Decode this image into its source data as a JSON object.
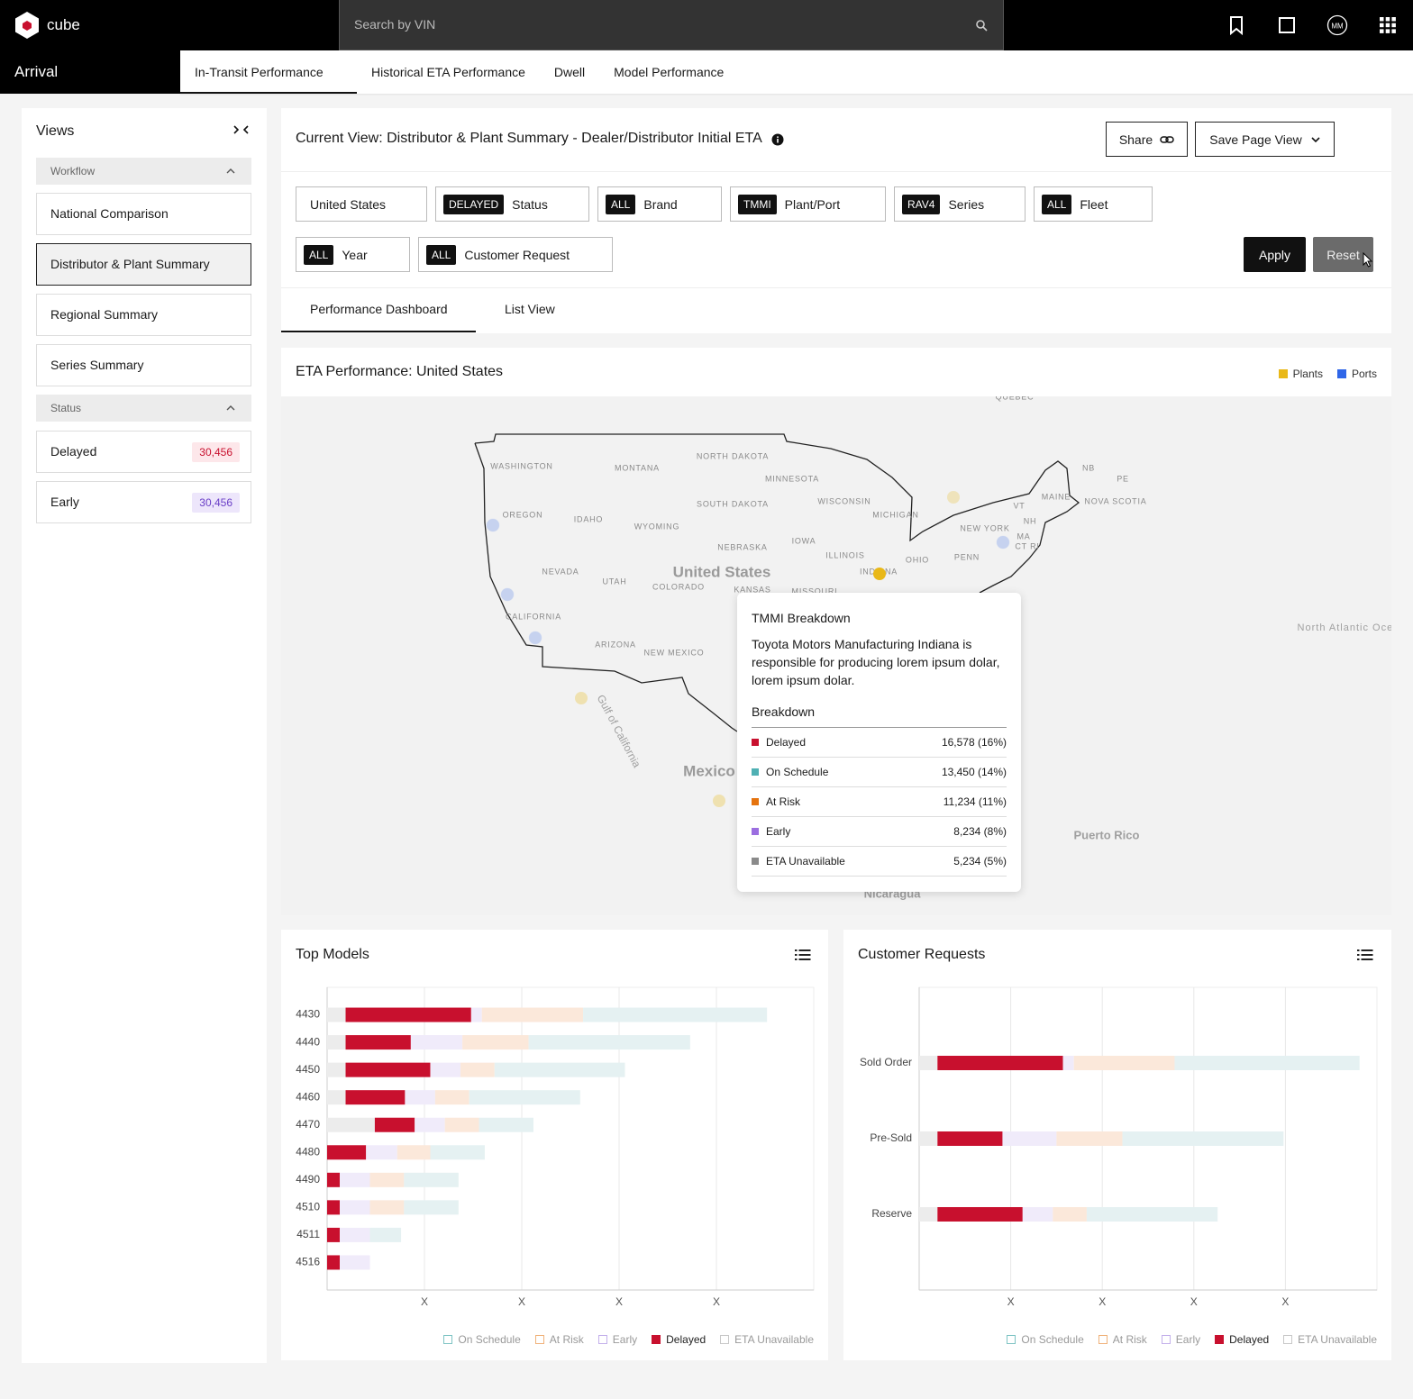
{
  "header": {
    "logo": "cube",
    "search_placeholder": "Search by VIN",
    "user_initials": "MM",
    "app": "Arrival",
    "tabs": [
      "In-Transit Performance",
      "Historical ETA Performance",
      "Dwell",
      "Model Performance"
    ]
  },
  "sidebar": {
    "title": "Views",
    "sections": [
      {
        "title": "Workflow",
        "items": [
          "National Comparison",
          "Distributor & Plant Summary",
          "Regional Summary",
          "Series Summary"
        ]
      },
      {
        "title": "Status",
        "items": [
          {
            "label": "Delayed",
            "count": "30,456"
          },
          {
            "label": "Early",
            "count": "30,456"
          }
        ]
      }
    ]
  },
  "view": {
    "title": "Current View: Distributor & Plant Summary - Dealer/Distributor Initial ETA",
    "share": "Share",
    "save": "Save Page View",
    "filters": [
      {
        "label": "United States"
      },
      {
        "tag": "DELAYED",
        "label": "Status"
      },
      {
        "tag": "ALL",
        "label": "Brand"
      },
      {
        "tag": "TMMI",
        "label": "Plant/Port"
      },
      {
        "tag": "RAV4",
        "label": "Series"
      },
      {
        "tag": "ALL",
        "label": "Fleet"
      },
      {
        "tag": "ALL",
        "label": "Year"
      },
      {
        "tag": "ALL",
        "label": "Customer Request"
      }
    ],
    "apply": "Apply",
    "reset": "Reset",
    "tabs": [
      "Performance Dashboard",
      "List View"
    ]
  },
  "map": {
    "title": "ETA Performance: United States",
    "legend": [
      {
        "name": "Plants",
        "color": "#e9b818"
      },
      {
        "name": "Ports",
        "color": "#2f66e8"
      }
    ],
    "labels": [
      "WASHINGTON",
      "MONTANA",
      "NORTH DAKOTA",
      "MINNESOTA",
      "WISCONSIN",
      "MICHIGAN",
      "SOUTH DAKOTA",
      "OREGON",
      "IDAHO",
      "WYOMING",
      "NEBRASKA",
      "IOWA",
      "ILLINOIS",
      "OHIO",
      "NEW YORK",
      "PENN",
      "NEVADA",
      "UTAH",
      "COLORADO",
      "KANSAS",
      "MISSOURI",
      "INDIANA",
      "CALIFORNIA",
      "ARIZONA",
      "NEW MEXICO",
      "QUEBEC",
      "NB",
      "PE",
      "NOVA SCOTIA",
      "MAINE",
      "VT",
      "NH",
      "MA",
      "CT RI",
      "United States",
      "Mexico",
      "Gulf of California",
      "North Atlantic Ocean",
      "Puerto Rico",
      "Nicaragua"
    ],
    "tooltip": {
      "title": "TMMI Breakdown",
      "description": "Toyota Motors Manufacturing Indiana is responsible for producing lorem ipsum dolar, lorem ipsum dolar.",
      "subtitle": "Breakdown",
      "rows": [
        {
          "name": "Delayed",
          "value": "16,578 (16%)",
          "color": "#c8102e"
        },
        {
          "name": "On Schedule",
          "value": "13,450 (14%)",
          "color": "#4fb0b3"
        },
        {
          "name": "At Risk",
          "value": "11,234 (11%)",
          "color": "#e5730e"
        },
        {
          "name": "Early",
          "value": "8,234 (8%)",
          "color": "#9b6ee0"
        },
        {
          "name": "ETA Unavailable",
          "value": "5,234 (5%)",
          "color": "#8a8a8a"
        }
      ]
    }
  },
  "chart_data": [
    {
      "type": "bar",
      "orientation": "horizontal",
      "stacked": true,
      "title": "Top Models",
      "categories": [
        "4430",
        "4440",
        "4450",
        "4460",
        "4470",
        "4480",
        "4490",
        "4510",
        "4511",
        "4516"
      ],
      "series": [
        {
          "name": "On Schedule",
          "color": "#e5f1f2",
          "legend_color": "#7fc4c4",
          "values": [
            1.89,
            1.66,
            1.34,
            1.14,
            0.56,
            0.56,
            0.56,
            0.56,
            0.32,
            0
          ]
        },
        {
          "name": "At Risk",
          "color": "#fbe8da",
          "legend_color": "#f0b27a",
          "values": [
            1.04,
            0.68,
            0.35,
            0.35,
            0.35,
            0.34,
            0.35,
            0.35,
            0,
            0
          ]
        },
        {
          "name": "Early",
          "color": "#f0ebfa",
          "legend_color": "#c3b0eb",
          "values": [
            0.11,
            0.53,
            0.31,
            0.31,
            0.31,
            0.32,
            0.31,
            0.31,
            0.31,
            0.31
          ]
        },
        {
          "name": "Delayed",
          "color": "#c8102e",
          "legend_color": "#c8102e",
          "values": [
            1.29,
            0.67,
            0.87,
            0.61,
            0.41,
            0.4,
            0.13,
            0.13,
            0.13,
            0.13
          ]
        },
        {
          "name": "ETA Unavailable",
          "color": "#ececec",
          "legend_color": "#c8c8c8",
          "values": [
            0.19,
            0.19,
            0.19,
            0.19,
            0.49,
            0,
            0,
            0,
            0,
            0
          ]
        }
      ],
      "highlight": "Delayed",
      "xlim": [
        0,
        5
      ],
      "xticks": [
        {
          "value": 1,
          "label": "X"
        },
        {
          "value": 2,
          "label": "X"
        },
        {
          "value": 3,
          "label": "X"
        },
        {
          "value": 4,
          "label": "X"
        }
      ],
      "grid": true,
      "legend": "bottom-right"
    },
    {
      "type": "bar",
      "orientation": "horizontal",
      "stacked": true,
      "title": "Customer Requests",
      "categories": [
        "Sold Order",
        "Pre-Sold",
        "Reserve"
      ],
      "series": [
        {
          "name": "On Schedule",
          "color": "#e5f1f2",
          "legend_color": "#7fc4c4",
          "values": [
            2.02,
            1.76,
            1.43
          ]
        },
        {
          "name": "At Risk",
          "color": "#fbe8da",
          "legend_color": "#f0b27a",
          "values": [
            1.1,
            0.72,
            0.37
          ]
        },
        {
          "name": "Early",
          "color": "#f0ebfa",
          "legend_color": "#c3b0eb",
          "values": [
            0.12,
            0.59,
            0.33
          ]
        },
        {
          "name": "Delayed",
          "color": "#c8102e",
          "legend_color": "#c8102e",
          "values": [
            1.37,
            0.71,
            0.93
          ]
        },
        {
          "name": "ETA Unavailable",
          "color": "#ececec",
          "legend_color": "#c8c8c8",
          "values": [
            0.2,
            0.2,
            0.2
          ]
        }
      ],
      "highlight": "Delayed",
      "xlim": [
        0,
        5
      ],
      "xticks": [
        {
          "value": 1,
          "label": "X"
        },
        {
          "value": 2,
          "label": "X"
        },
        {
          "value": 3,
          "label": "X"
        },
        {
          "value": 4,
          "label": "X"
        }
      ],
      "grid": true,
      "legend": "bottom-right"
    }
  ]
}
